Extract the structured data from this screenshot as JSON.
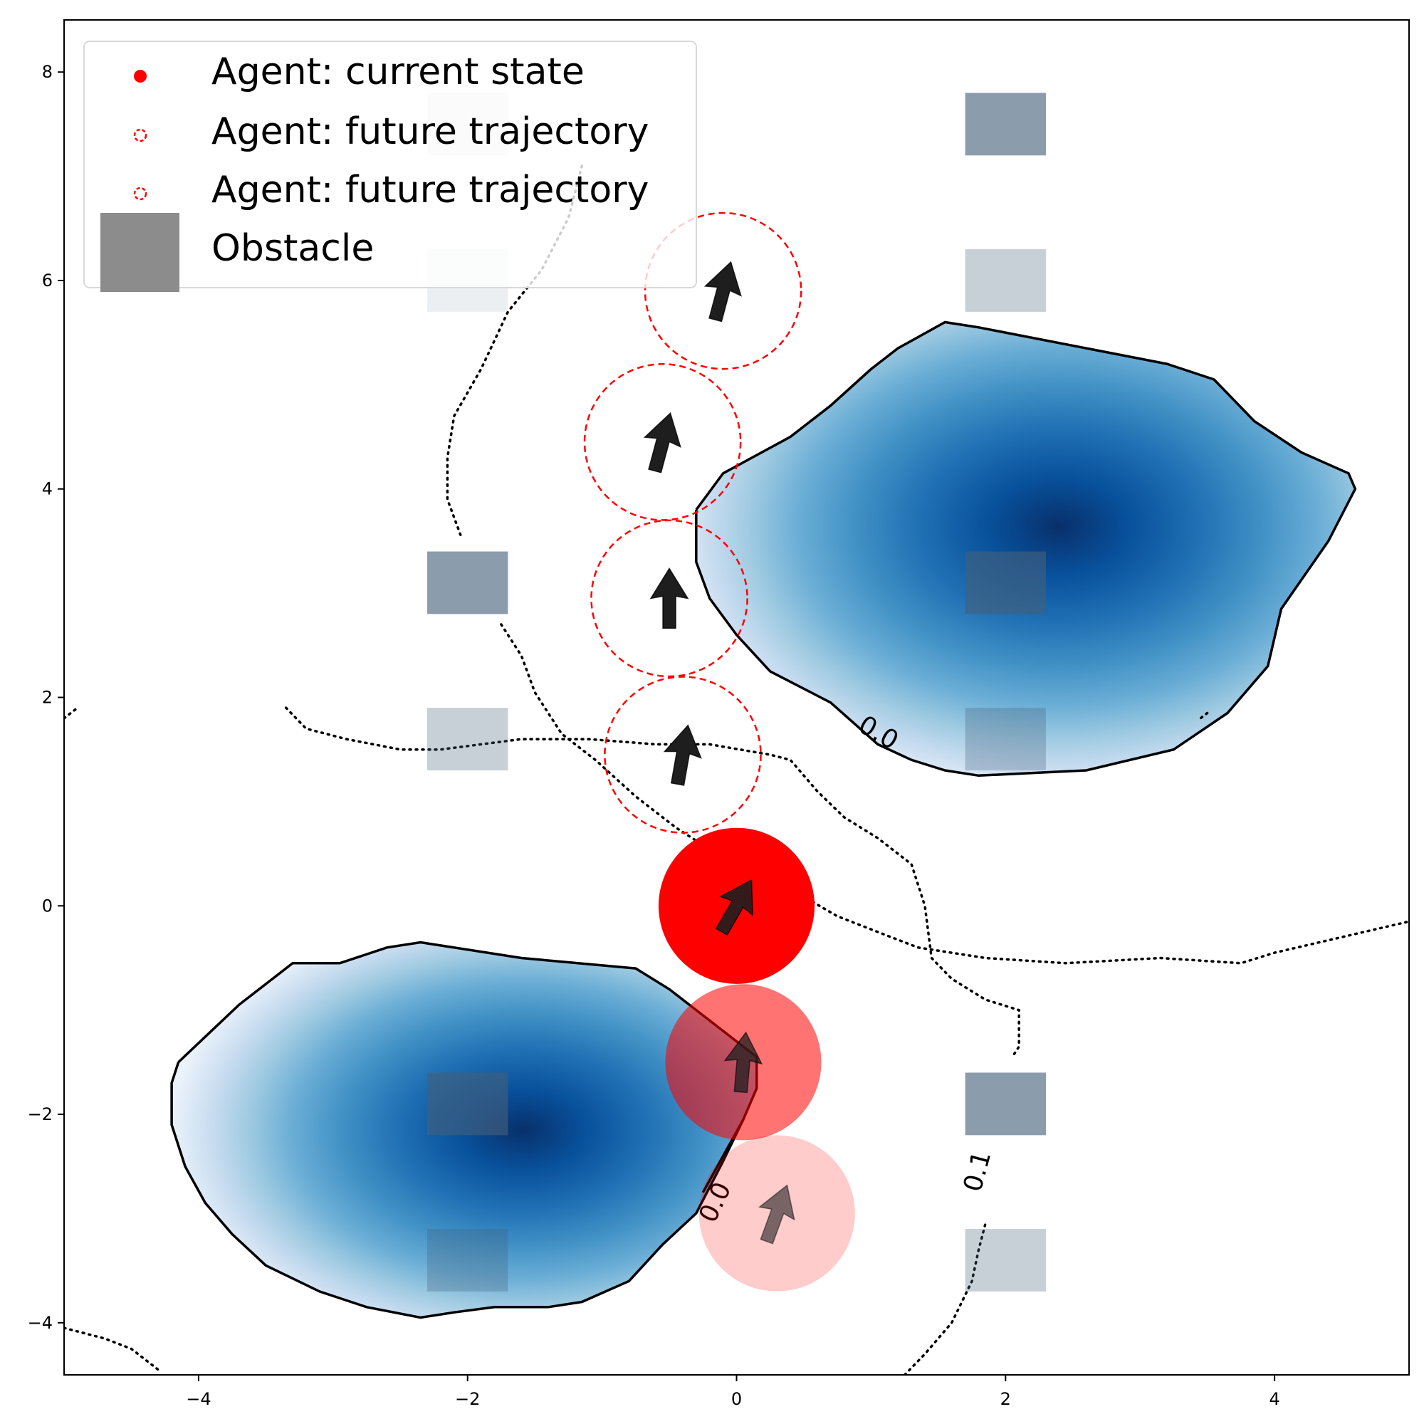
{
  "chart_data": {
    "type": "scatter",
    "title": "",
    "xlabel": "",
    "ylabel": "",
    "xlim": [
      -5,
      5
    ],
    "ylim": [
      -4.5,
      8.5
    ],
    "xticks": [
      -4,
      -2,
      0,
      2,
      4
    ],
    "yticks": [
      -4,
      -2,
      0,
      2,
      4,
      6,
      8
    ],
    "xtick_labels": [
      "−4",
      "−2",
      "0",
      "2",
      "4"
    ],
    "ytick_labels": [
      "−4",
      "−2",
      "0",
      "2",
      "4",
      "6",
      "8"
    ],
    "grid": false,
    "legend": {
      "placement": "top-left",
      "entries": [
        {
          "label": "Agent: current state",
          "marker": "filled-circle",
          "color": "#ff0000"
        },
        {
          "label": "Agent: future trajectory",
          "marker": "dashed-circle",
          "color": "#ff0000"
        },
        {
          "label": "Agent: future trajectory",
          "marker": "dashed-circle",
          "color": "#ff0000"
        },
        {
          "label": "Obstacle",
          "marker": "square",
          "color": "#8c8c8c"
        }
      ]
    },
    "agent_current": {
      "x": 0.0,
      "y": 0.0,
      "heading_deg": 60,
      "color": "#ff0000"
    },
    "agent_future": [
      {
        "x": -0.4,
        "y": 1.45,
        "heading_deg": 80
      },
      {
        "x": -0.5,
        "y": 2.95,
        "heading_deg": 90
      },
      {
        "x": -0.55,
        "y": 4.45,
        "heading_deg": 75
      },
      {
        "x": -0.1,
        "y": 5.9,
        "heading_deg": 75
      }
    ],
    "agent_past": [
      {
        "x": 0.05,
        "y": -1.5,
        "heading_deg": 85,
        "opacity": 0.55
      },
      {
        "x": 0.3,
        "y": -2.95,
        "heading_deg": 70,
        "opacity": 0.2
      }
    ],
    "obstacles": [
      {
        "x": -2,
        "y": 7.5,
        "opacity": 0.12
      },
      {
        "x": -2,
        "y": 6.0,
        "opacity": 0.1
      },
      {
        "x": -2,
        "y": 3.1,
        "opacity": 0.62
      },
      {
        "x": -2,
        "y": 1.6,
        "opacity": 0.3
      },
      {
        "x": -2,
        "y": -1.9,
        "opacity": 0.62
      },
      {
        "x": -2,
        "y": -3.4,
        "opacity": 0.3
      },
      {
        "x": 2,
        "y": 7.5,
        "opacity": 0.62
      },
      {
        "x": 2,
        "y": 6.0,
        "opacity": 0.3
      },
      {
        "x": 2,
        "y": 3.1,
        "opacity": 0.62
      },
      {
        "x": 2,
        "y": 1.6,
        "opacity": 0.3
      },
      {
        "x": 2,
        "y": -1.9,
        "opacity": 0.62
      },
      {
        "x": 2,
        "y": -3.4,
        "opacity": 0.3
      }
    ],
    "obstacle_color": "#44607a",
    "obstacle_size": 0.6,
    "density_peaks": [
      {
        "center": [
          2.4,
          3.6
        ],
        "outline": [
          [
            -0.3,
            3.8
          ],
          [
            -0.1,
            4.15
          ],
          [
            0.4,
            4.5
          ],
          [
            0.7,
            4.8
          ],
          [
            1.0,
            5.15
          ],
          [
            1.2,
            5.35
          ],
          [
            1.55,
            5.6
          ],
          [
            1.8,
            5.55
          ],
          [
            2.6,
            5.35
          ],
          [
            3.2,
            5.2
          ],
          [
            3.55,
            5.05
          ],
          [
            3.85,
            4.65
          ],
          [
            4.2,
            4.35
          ],
          [
            4.55,
            4.15
          ],
          [
            4.6,
            4.0
          ],
          [
            4.4,
            3.5
          ],
          [
            4.05,
            2.85
          ],
          [
            3.95,
            2.3
          ],
          [
            3.65,
            1.85
          ],
          [
            3.25,
            1.5
          ],
          [
            2.6,
            1.3
          ],
          [
            1.8,
            1.25
          ],
          [
            1.55,
            1.3
          ],
          [
            1.3,
            1.4
          ],
          [
            1.05,
            1.55
          ],
          [
            0.7,
            1.95
          ],
          [
            0.25,
            2.25
          ],
          [
            0.0,
            2.6
          ],
          [
            -0.2,
            2.95
          ],
          [
            -0.3,
            3.3
          ],
          [
            -0.3,
            3.8
          ]
        ]
      },
      {
        "center": [
          -1.5,
          -2.2
        ],
        "outline": [
          [
            -4.15,
            -1.5
          ],
          [
            -3.7,
            -0.95
          ],
          [
            -3.3,
            -0.55
          ],
          [
            -2.95,
            -0.55
          ],
          [
            -2.6,
            -0.4
          ],
          [
            -2.35,
            -0.35
          ],
          [
            -1.6,
            -0.5
          ],
          [
            -0.75,
            -0.6
          ],
          [
            -0.5,
            -0.8
          ],
          [
            -0.25,
            -1.05
          ],
          [
            0.0,
            -1.3
          ],
          [
            0.15,
            -1.45
          ],
          [
            0.15,
            -1.75
          ],
          [
            0.05,
            -2.05
          ],
          [
            -0.1,
            -2.45
          ],
          [
            -0.3,
            -2.95
          ],
          [
            -0.55,
            -3.25
          ],
          [
            -0.8,
            -3.6
          ],
          [
            -1.15,
            -3.8
          ],
          [
            -1.4,
            -3.85
          ],
          [
            -1.8,
            -3.85
          ],
          [
            -2.1,
            -3.9
          ],
          [
            -2.35,
            -3.95
          ],
          [
            -2.75,
            -3.85
          ],
          [
            -3.1,
            -3.7
          ],
          [
            -3.5,
            -3.45
          ],
          [
            -3.75,
            -3.15
          ],
          [
            -3.95,
            -2.85
          ],
          [
            -4.1,
            -2.5
          ],
          [
            -4.2,
            -2.1
          ],
          [
            -4.2,
            -1.7
          ],
          [
            -4.15,
            -1.5
          ]
        ]
      }
    ],
    "contour_labels": [
      {
        "text": "0.0",
        "x": 1.05,
        "y": 1.65,
        "rotation": 30
      },
      {
        "text": "0.0",
        "x": -0.15,
        "y": -2.85,
        "rotation": -65
      },
      {
        "text": "0.1",
        "x": 1.8,
        "y": -2.55,
        "rotation": -75
      }
    ],
    "dotted_contours": [
      [
        [
          -1.15,
          7.1
        ],
        [
          -1.25,
          6.6
        ],
        [
          -1.45,
          6.1
        ],
        [
          -1.7,
          5.7
        ],
        [
          -1.9,
          5.15
        ],
        [
          -2.1,
          4.7
        ],
        [
          -2.15,
          4.3
        ],
        [
          -2.15,
          3.9
        ],
        [
          -2.05,
          3.55
        ]
      ],
      [
        [
          -1.75,
          2.7
        ],
        [
          -1.6,
          2.4
        ],
        [
          -1.5,
          2.05
        ],
        [
          -1.3,
          1.65
        ],
        [
          -1.05,
          1.4
        ],
        [
          -0.75,
          1.05
        ],
        [
          -0.45,
          0.75
        ],
        [
          -0.15,
          0.5
        ],
        [
          0.25,
          0.25
        ],
        [
          0.55,
          0.05
        ],
        [
          0.75,
          -0.1
        ],
        [
          1.05,
          -0.25
        ],
        [
          1.35,
          -0.4
        ],
        [
          1.85,
          -0.5
        ],
        [
          2.45,
          -0.55
        ],
        [
          3.15,
          -0.5
        ],
        [
          3.75,
          -0.55
        ],
        [
          4.0,
          -0.45
        ],
        [
          4.5,
          -0.3
        ],
        [
          5.0,
          -0.15
        ]
      ],
      [
        [
          -3.35,
          1.9
        ],
        [
          -3.2,
          1.7
        ],
        [
          -2.9,
          1.6
        ],
        [
          -2.5,
          1.5
        ],
        [
          -2.2,
          1.5
        ],
        [
          -1.9,
          1.55
        ],
        [
          -1.6,
          1.6
        ],
        [
          -1.1,
          1.6
        ],
        [
          -0.6,
          1.55
        ],
        [
          -0.2,
          1.55
        ],
        [
          0.25,
          1.45
        ],
        [
          0.4,
          1.4
        ],
        [
          0.6,
          1.1
        ],
        [
          0.8,
          0.85
        ],
        [
          1.05,
          0.65
        ],
        [
          1.3,
          0.4
        ],
        [
          1.4,
          0.0
        ],
        [
          1.45,
          -0.5
        ],
        [
          1.6,
          -0.7
        ],
        [
          1.85,
          -0.9
        ],
        [
          2.1,
          -1.0
        ],
        [
          2.1,
          -1.35
        ],
        [
          2.05,
          -1.45
        ]
      ],
      [
        [
          -5.0,
          1.8
        ],
        [
          -4.9,
          1.9
        ]
      ],
      [
        [
          -5.0,
          -4.05
        ],
        [
          -4.7,
          -4.15
        ],
        [
          -4.5,
          -4.25
        ],
        [
          -4.3,
          -4.45
        ]
      ],
      [
        [
          1.25,
          -4.5
        ],
        [
          1.4,
          -4.3
        ],
        [
          1.6,
          -4.0
        ],
        [
          1.75,
          -3.6
        ],
        [
          1.8,
          -3.3
        ],
        [
          1.85,
          -3.05
        ]
      ],
      [
        [
          3.5,
          1.85
        ],
        [
          3.45,
          1.8
        ]
      ]
    ],
    "solid_contour_extra": [
      [
        [
          0.05,
          -2.05
        ],
        [
          -0.1,
          -2.4
        ],
        [
          -0.25,
          -2.75
        ]
      ]
    ]
  }
}
